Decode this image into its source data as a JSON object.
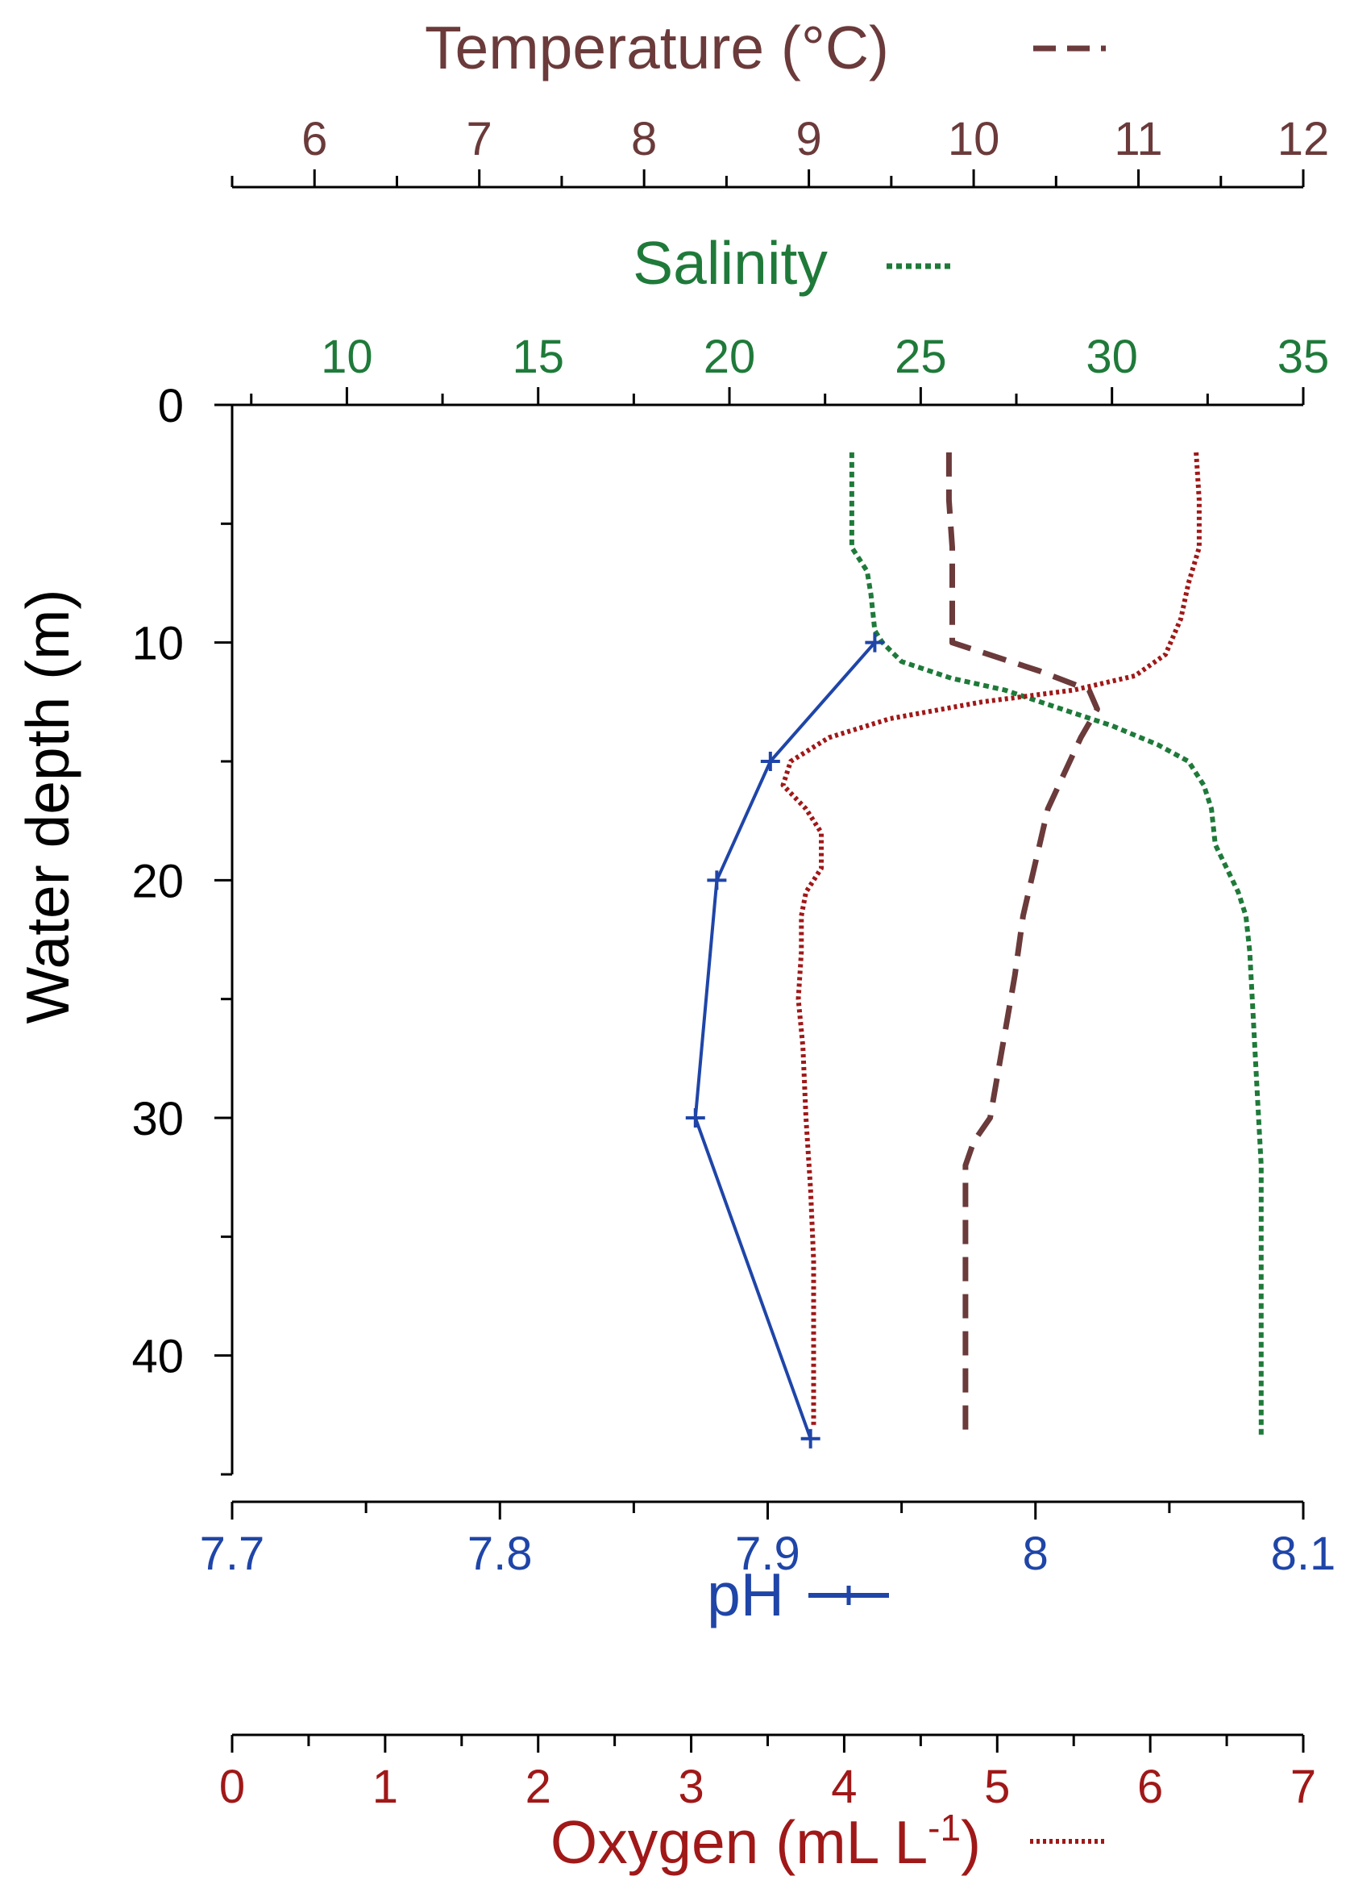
{
  "chart_data": {
    "type": "line",
    "colors": {
      "temperature": "#6b3a3a",
      "salinity": "#1f7a3a",
      "ph": "#1f45a8",
      "oxygen": "#a01818",
      "axis": "#000000"
    },
    "depth_axis": {
      "label": "Water depth (m)",
      "range": [
        0,
        45
      ],
      "ticks": [
        0,
        10,
        20,
        30,
        40
      ],
      "tick_labels": [
        "0",
        "10",
        "20",
        "30",
        "40"
      ],
      "minor_step": 5,
      "inverted": true
    },
    "temperature_axis": {
      "label": "Temperature (°C)",
      "range": [
        5.5,
        12
      ],
      "ticks": [
        6,
        7,
        8,
        9,
        10,
        11,
        12
      ],
      "tick_labels": [
        "6",
        "7",
        "8",
        "9",
        "10",
        "11",
        "12"
      ],
      "minor_step": 0.5,
      "position": "top"
    },
    "salinity_axis": {
      "label": "Salinity",
      "range": [
        7,
        35
      ],
      "ticks": [
        10,
        15,
        20,
        25,
        30,
        35
      ],
      "tick_labels": [
        "10",
        "15",
        "20",
        "25",
        "30",
        "35"
      ],
      "minor_step": 2.5,
      "position": "top"
    },
    "ph_axis": {
      "label": "pH",
      "range": [
        7.7,
        8.1
      ],
      "ticks": [
        7.7,
        7.8,
        7.9,
        8.0,
        8.1
      ],
      "tick_labels": [
        "7.7",
        "7.8",
        "7.9",
        "8",
        "8.1"
      ],
      "minor_step": 0.05,
      "position": "bottom"
    },
    "oxygen_axis": {
      "label": "Oxygen (mL L",
      "label_superscript": "-1",
      "label_suffix": ")",
      "range": [
        0,
        7
      ],
      "ticks": [
        0,
        1,
        2,
        3,
        4,
        5,
        6,
        7
      ],
      "tick_labels": [
        "0",
        "1",
        "2",
        "3",
        "4",
        "5",
        "6",
        "7"
      ],
      "minor_step": 0.5,
      "position": "bottom"
    },
    "series": [
      {
        "name": "Temperature (°C)",
        "axis": "temperature",
        "style": "dashed",
        "points": [
          [
            9.85,
            2
          ],
          [
            9.85,
            4
          ],
          [
            9.87,
            6
          ],
          [
            9.87,
            8
          ],
          [
            9.87,
            10
          ],
          [
            10.4,
            11.2
          ],
          [
            10.7,
            12
          ],
          [
            10.75,
            12.8
          ],
          [
            10.65,
            14
          ],
          [
            10.55,
            15.5
          ],
          [
            10.45,
            17
          ],
          [
            10.4,
            18.5
          ],
          [
            10.35,
            20
          ],
          [
            10.3,
            21.5
          ],
          [
            10.25,
            24
          ],
          [
            10.2,
            26
          ],
          [
            10.15,
            28
          ],
          [
            10.1,
            30
          ],
          [
            10.0,
            31
          ],
          [
            9.95,
            32
          ],
          [
            9.95,
            34
          ],
          [
            9.95,
            36
          ],
          [
            9.95,
            38
          ],
          [
            9.95,
            40
          ],
          [
            9.95,
            42
          ],
          [
            9.95,
            43.5
          ]
        ]
      },
      {
        "name": "Salinity",
        "axis": "salinity",
        "style": "dotted",
        "points": [
          [
            23.2,
            2
          ],
          [
            23.2,
            4
          ],
          [
            23.2,
            6
          ],
          [
            23.6,
            7
          ],
          [
            23.7,
            8
          ],
          [
            23.8,
            9.5
          ],
          [
            24.0,
            10
          ],
          [
            24.5,
            10.8
          ],
          [
            25.8,
            11.5
          ],
          [
            27.2,
            12
          ],
          [
            28.5,
            12.7
          ],
          [
            30.0,
            13.5
          ],
          [
            31.2,
            14.3
          ],
          [
            32.0,
            15
          ],
          [
            32.4,
            16
          ],
          [
            32.6,
            17
          ],
          [
            32.7,
            18.5
          ],
          [
            33.0,
            19.5
          ],
          [
            33.3,
            20.5
          ],
          [
            33.5,
            21.5
          ],
          [
            33.6,
            23
          ],
          [
            33.7,
            26
          ],
          [
            33.8,
            29
          ],
          [
            33.9,
            32
          ],
          [
            33.9,
            36
          ],
          [
            33.9,
            40
          ],
          [
            33.9,
            43.5
          ]
        ]
      },
      {
        "name": "Oxygen (mL L-1)",
        "axis": "oxygen",
        "style": "dotted",
        "points": [
          [
            6.3,
            2
          ],
          [
            6.32,
            4
          ],
          [
            6.32,
            6
          ],
          [
            6.25,
            7.5
          ],
          [
            6.2,
            9
          ],
          [
            6.1,
            10.5
          ],
          [
            5.9,
            11.4
          ],
          [
            5.5,
            12
          ],
          [
            4.9,
            12.5
          ],
          [
            4.3,
            13.2
          ],
          [
            3.9,
            14
          ],
          [
            3.65,
            15
          ],
          [
            3.6,
            16
          ],
          [
            3.75,
            17
          ],
          [
            3.85,
            18
          ],
          [
            3.85,
            19.5
          ],
          [
            3.75,
            20.5
          ],
          [
            3.72,
            21.5
          ],
          [
            3.72,
            23
          ],
          [
            3.7,
            25
          ],
          [
            3.73,
            27
          ],
          [
            3.75,
            30
          ],
          [
            3.78,
            33
          ],
          [
            3.8,
            36
          ],
          [
            3.8,
            40
          ],
          [
            3.8,
            43
          ]
        ]
      },
      {
        "name": "pH",
        "axis": "ph",
        "style": "solid",
        "marker": "plus",
        "points": [
          [
            7.94,
            10
          ],
          [
            7.901,
            15
          ],
          [
            7.881,
            20
          ],
          [
            7.873,
            30
          ],
          [
            7.916,
            43.5
          ]
        ]
      }
    ],
    "legend_samples": {
      "temperature": "dashed",
      "salinity": "dotted",
      "ph": "solid-plus",
      "oxygen": "dotted"
    },
    "grid": false
  }
}
